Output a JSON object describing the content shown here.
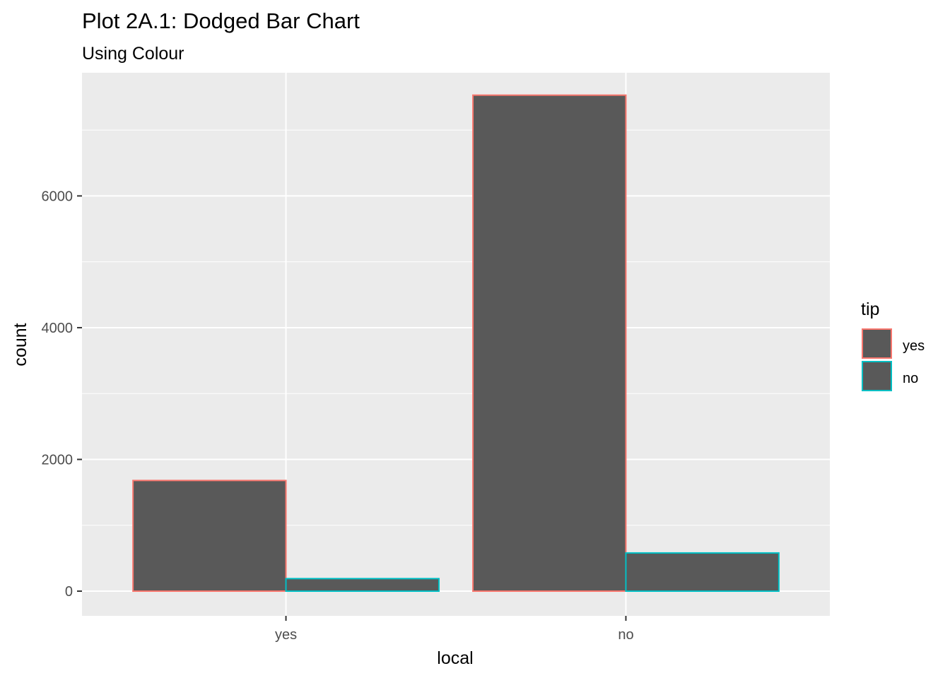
{
  "chart_data": {
    "type": "bar",
    "title": "Plot 2A.1: Dodged Bar Chart",
    "subtitle": "Using Colour",
    "xlabel": "local",
    "ylabel": "count",
    "categories": [
      "yes",
      "no"
    ],
    "series": [
      {
        "name": "yes",
        "values": [
          1680,
          7530
        ],
        "outline_color": "#F8766D"
      },
      {
        "name": "no",
        "values": [
          190,
          580
        ],
        "outline_color": "#00BFC4"
      }
    ],
    "bar_fill": "#595959",
    "ylim": [
      -375,
      7870
    ],
    "y_ticks": [
      0,
      2000,
      4000,
      6000
    ],
    "y_tick_labels": [
      "0",
      "2000",
      "4000",
      "6000"
    ],
    "grid": true,
    "panel_background": "#EBEBEB",
    "gridline_color": "#FFFFFF",
    "legend": {
      "title": "tip",
      "position": "right",
      "items": [
        {
          "label": "yes",
          "outline_color": "#F8766D"
        },
        {
          "label": "no",
          "outline_color": "#00BFC4"
        }
      ]
    }
  }
}
